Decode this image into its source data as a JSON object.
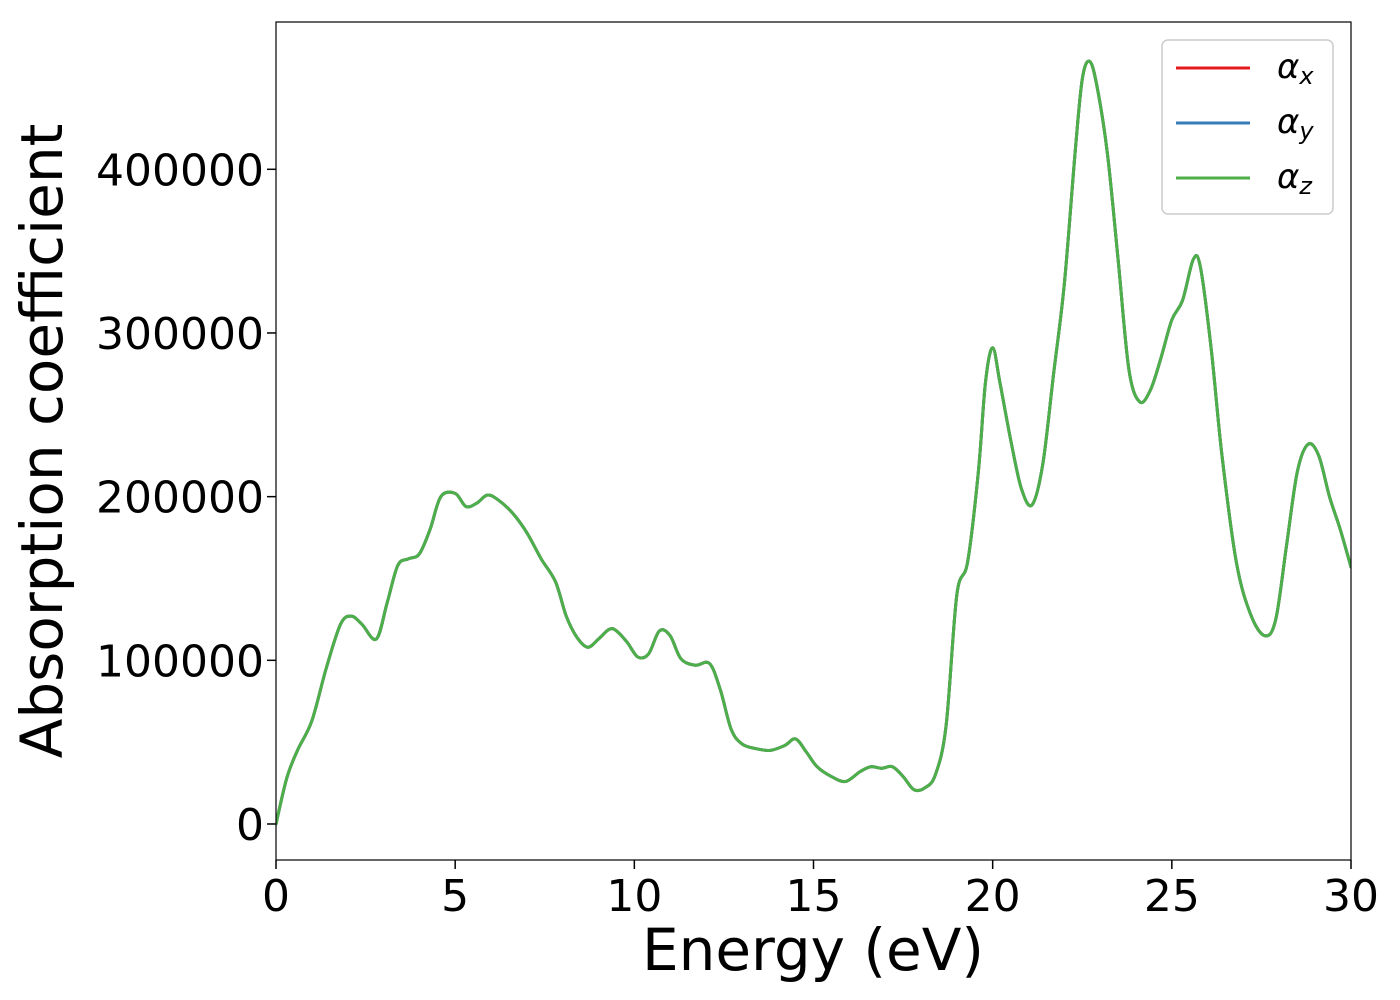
{
  "chart_data": {
    "type": "line",
    "title": "",
    "xlabel": "Energy (eV)",
    "ylabel": "Absorption coefficient",
    "xlim": [
      0,
      30
    ],
    "ylim": [
      -22000,
      490000
    ],
    "xticks": [
      0,
      5,
      10,
      15,
      20,
      25,
      30
    ],
    "yticks": [
      0,
      100000,
      200000,
      300000,
      400000
    ],
    "xtick_labels": [
      "0",
      "5",
      "10",
      "15",
      "20",
      "25",
      "30"
    ],
    "ytick_labels": [
      "0",
      "100000",
      "200000",
      "300000",
      "400000"
    ],
    "grid": false,
    "legend": "top-right",
    "x": [
      0,
      0.3,
      0.6,
      1,
      1.4,
      1.8,
      2.1,
      2.4,
      2.8,
      3.1,
      3.4,
      3.7,
      4,
      4.3,
      4.6,
      5,
      5.3,
      5.6,
      5.9,
      6.2,
      6.6,
      7,
      7.4,
      7.8,
      8.1,
      8.4,
      8.7,
      9,
      9.3,
      9.5,
      9.8,
      10.1,
      10.4,
      10.7,
      11,
      11.3,
      11.7,
      12.1,
      12.4,
      12.7,
      13,
      13.4,
      13.8,
      14.2,
      14.5,
      14.8,
      15.1,
      15.5,
      15.9,
      16.3,
      16.6,
      16.9,
      17.2,
      17.5,
      17.8,
      18.1,
      18.4,
      18.7,
      19,
      19.3,
      19.6,
      19.8,
      20,
      20.2,
      20.5,
      20.8,
      21.1,
      21.4,
      21.7,
      22,
      22.3,
      22.5,
      22.7,
      22.9,
      23.2,
      23.5,
      23.8,
      24.1,
      24.4,
      24.7,
      25,
      25.3,
      25.6,
      25.8,
      26.1,
      26.4,
      26.8,
      27.2,
      27.6,
      27.9,
      28.2,
      28.5,
      28.8,
      29.1,
      29.4,
      29.7,
      30
    ],
    "series": [
      {
        "name": "α_x",
        "color": "#e41a1c",
        "values": [
          0,
          28000,
          45000,
          63000,
          95000,
          122000,
          127000,
          122000,
          113000,
          135000,
          158000,
          162000,
          165000,
          180000,
          200000,
          202000,
          194000,
          196000,
          201000,
          198000,
          190000,
          178000,
          162000,
          148000,
          127000,
          114000,
          108000,
          113000,
          119000,
          118000,
          111000,
          102000,
          104000,
          118000,
          115000,
          101000,
          97000,
          98000,
          82000,
          58000,
          49000,
          46000,
          45000,
          48000,
          52000,
          44000,
          35000,
          29000,
          26000,
          32000,
          35000,
          34000,
          35000,
          29000,
          21000,
          22000,
          30000,
          60000,
          140000,
          160000,
          215000,
          270000,
          291000,
          270000,
          235000,
          205000,
          195000,
          220000,
          275000,
          330000,
          410000,
          455000,
          466000,
          452000,
          410000,
          345000,
          278000,
          258000,
          265000,
          285000,
          308000,
          320000,
          345000,
          340000,
          290000,
          225000,
          160000,
          128000,
          115000,
          125000,
          170000,
          215000,
          232000,
          225000,
          200000,
          180000,
          157000
        ]
      },
      {
        "name": "α_y",
        "color": "#377eb8",
        "values": [
          0,
          28000,
          45000,
          63000,
          95000,
          122000,
          127000,
          122000,
          113000,
          135000,
          158000,
          162000,
          165000,
          180000,
          200000,
          202000,
          194000,
          196000,
          201000,
          198000,
          190000,
          178000,
          162000,
          148000,
          127000,
          114000,
          108000,
          113000,
          119000,
          118000,
          111000,
          102000,
          104000,
          118000,
          115000,
          101000,
          97000,
          98000,
          82000,
          58000,
          49000,
          46000,
          45000,
          48000,
          52000,
          44000,
          35000,
          29000,
          26000,
          32000,
          35000,
          34000,
          35000,
          29000,
          21000,
          22000,
          30000,
          60000,
          140000,
          160000,
          215000,
          270000,
          291000,
          270000,
          235000,
          205000,
          195000,
          220000,
          275000,
          330000,
          410000,
          455000,
          466000,
          452000,
          410000,
          345000,
          278000,
          258000,
          265000,
          285000,
          308000,
          320000,
          345000,
          340000,
          290000,
          225000,
          160000,
          128000,
          115000,
          125000,
          170000,
          215000,
          232000,
          225000,
          200000,
          180000,
          157000
        ]
      },
      {
        "name": "α_z",
        "color": "#4daf4a",
        "values": [
          0,
          28000,
          45000,
          63000,
          95000,
          122000,
          127000,
          122000,
          113000,
          135000,
          158000,
          162000,
          165000,
          180000,
          200000,
          202000,
          194000,
          196000,
          201000,
          198000,
          190000,
          178000,
          162000,
          148000,
          127000,
          114000,
          108000,
          113000,
          119000,
          118000,
          111000,
          102000,
          104000,
          118000,
          115000,
          101000,
          97000,
          98000,
          82000,
          58000,
          49000,
          46000,
          45000,
          48000,
          52000,
          44000,
          35000,
          29000,
          26000,
          32000,
          35000,
          34000,
          35000,
          29000,
          21000,
          22000,
          30000,
          60000,
          140000,
          160000,
          215000,
          270000,
          291000,
          270000,
          235000,
          205000,
          195000,
          220000,
          275000,
          330000,
          410000,
          455000,
          466000,
          452000,
          410000,
          345000,
          278000,
          258000,
          265000,
          285000,
          308000,
          320000,
          345000,
          340000,
          290000,
          225000,
          160000,
          128000,
          115000,
          125000,
          170000,
          215000,
          232000,
          225000,
          200000,
          180000,
          157000
        ]
      }
    ]
  },
  "legend": {
    "items": [
      {
        "symbol": "α",
        "sub": "x"
      },
      {
        "symbol": "α",
        "sub": "y"
      },
      {
        "symbol": "α",
        "sub": "z"
      }
    ]
  }
}
